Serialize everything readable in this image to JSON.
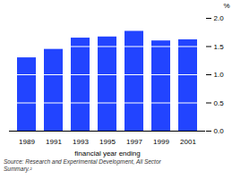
{
  "chart_data": {
    "type": "bar",
    "categories": [
      "1989",
      "1991",
      "1993",
      "1995",
      "1997",
      "1999",
      "2001"
    ],
    "values": [
      1.3,
      1.45,
      1.65,
      1.67,
      1.77,
      1.6,
      1.62
    ],
    "color": "#2244ff",
    "xlabel": "financial year ending",
    "ylabel": "%",
    "caption": "Source: Research and Experimental Development, All Sector\nSummary.²",
    "ylim": [
      0.0,
      2.0
    ],
    "yticks": [
      {
        "value": 0.0,
        "label": "0.0"
      },
      0.5,
      {
        "value": 1.0,
        "label": "1.0"
      },
      1.5,
      {
        "value": 2.0,
        "label": "2.0"
      }
    ],
    "grid": true
  }
}
